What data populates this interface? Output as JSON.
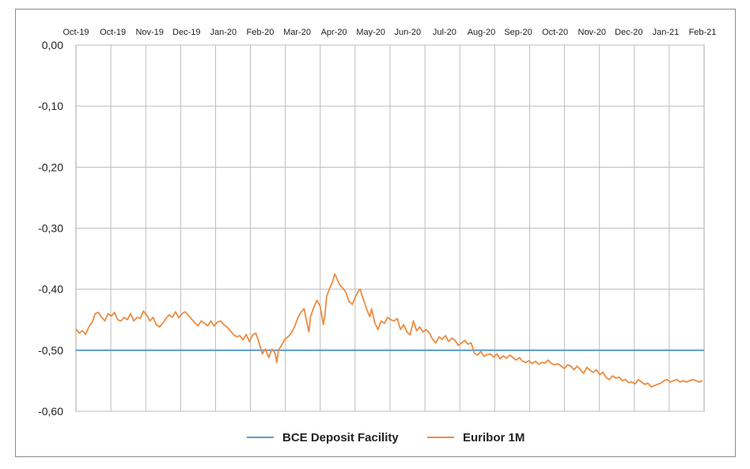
{
  "chart_data": {
    "type": "line",
    "x_tick_labels": [
      "Oct-19",
      "Oct-19",
      "Nov-19",
      "Dec-19",
      "Jan-20",
      "Feb-20",
      "Mar-20",
      "Apr-20",
      "May-20",
      "Jun-20",
      "Jul-20",
      "Aug-20",
      "Sep-20",
      "Oct-20",
      "Nov-20",
      "Dec-20",
      "Jan-21",
      "Feb-21"
    ],
    "y_tick_labels": [
      "0,00",
      "-0,10",
      "-0,20",
      "-0,30",
      "-0,40",
      "-0,50",
      "-0,60"
    ],
    "y_ticks": [
      0,
      -0.1,
      -0.2,
      -0.3,
      -0.4,
      -0.5,
      -0.6
    ],
    "ylim": [
      -0.6,
      0
    ],
    "grid": true,
    "legend_position": "bottom-center",
    "series": [
      {
        "name": "BCE Deposit Facility",
        "color": "#5b9bd5",
        "values": [
          [
            0,
            -0.5
          ],
          [
            17.3,
            -0.5
          ]
        ]
      },
      {
        "name": "Euribor 1M",
        "color": "#ed8b3f",
        "values": [
          [
            0.0,
            -0.465
          ],
          [
            0.1,
            -0.472
          ],
          [
            0.2,
            -0.468
          ],
          [
            0.3,
            -0.474
          ],
          [
            0.4,
            -0.462
          ],
          [
            0.5,
            -0.455
          ],
          [
            0.6,
            -0.44
          ],
          [
            0.7,
            -0.438
          ],
          [
            0.8,
            -0.446
          ],
          [
            0.9,
            -0.452
          ],
          [
            1.0,
            -0.44
          ],
          [
            1.1,
            -0.444
          ],
          [
            1.2,
            -0.438
          ],
          [
            1.3,
            -0.45
          ],
          [
            1.4,
            -0.452
          ],
          [
            1.5,
            -0.446
          ],
          [
            1.6,
            -0.45
          ],
          [
            1.7,
            -0.44
          ],
          [
            1.8,
            -0.452
          ],
          [
            1.9,
            -0.446
          ],
          [
            2.0,
            -0.448
          ],
          [
            2.1,
            -0.436
          ],
          [
            2.2,
            -0.442
          ],
          [
            2.3,
            -0.452
          ],
          [
            2.4,
            -0.446
          ],
          [
            2.5,
            -0.458
          ],
          [
            2.6,
            -0.462
          ],
          [
            2.7,
            -0.456
          ],
          [
            2.8,
            -0.448
          ],
          [
            2.9,
            -0.442
          ],
          [
            3.0,
            -0.446
          ],
          [
            3.1,
            -0.437
          ],
          [
            3.2,
            -0.447
          ],
          [
            3.3,
            -0.44
          ],
          [
            3.4,
            -0.437
          ],
          [
            3.5,
            -0.443
          ],
          [
            3.6,
            -0.449
          ],
          [
            3.7,
            -0.455
          ],
          [
            3.8,
            -0.46
          ],
          [
            3.9,
            -0.452
          ],
          [
            4.0,
            -0.456
          ],
          [
            4.1,
            -0.46
          ],
          [
            4.2,
            -0.452
          ],
          [
            4.3,
            -0.46
          ],
          [
            4.4,
            -0.454
          ],
          [
            4.5,
            -0.452
          ],
          [
            4.6,
            -0.458
          ],
          [
            4.7,
            -0.462
          ],
          [
            4.8,
            -0.468
          ],
          [
            4.9,
            -0.474
          ],
          [
            5.0,
            -0.478
          ],
          [
            5.1,
            -0.476
          ],
          [
            5.2,
            -0.483
          ],
          [
            5.3,
            -0.474
          ],
          [
            5.4,
            -0.486
          ],
          [
            5.5,
            -0.475
          ],
          [
            5.6,
            -0.472
          ],
          [
            5.7,
            -0.488
          ],
          [
            5.8,
            -0.506
          ],
          [
            5.9,
            -0.498
          ],
          [
            6.0,
            -0.512
          ],
          [
            6.1,
            -0.498
          ],
          [
            6.2,
            -0.505
          ],
          [
            6.25,
            -0.52
          ],
          [
            6.3,
            -0.5
          ],
          [
            6.4,
            -0.492
          ],
          [
            6.5,
            -0.482
          ],
          [
            6.6,
            -0.478
          ],
          [
            6.7,
            -0.472
          ],
          [
            6.8,
            -0.462
          ],
          [
            6.9,
            -0.448
          ],
          [
            7.0,
            -0.438
          ],
          [
            7.1,
            -0.432
          ],
          [
            7.2,
            -0.458
          ],
          [
            7.25,
            -0.47
          ],
          [
            7.3,
            -0.445
          ],
          [
            7.4,
            -0.43
          ],
          [
            7.5,
            -0.418
          ],
          [
            7.6,
            -0.428
          ],
          [
            7.7,
            -0.458
          ],
          [
            7.75,
            -0.442
          ],
          [
            7.8,
            -0.412
          ],
          [
            7.9,
            -0.398
          ],
          [
            8.0,
            -0.386
          ],
          [
            8.05,
            -0.375
          ],
          [
            8.1,
            -0.38
          ],
          [
            8.2,
            -0.392
          ],
          [
            8.3,
            -0.398
          ],
          [
            8.4,
            -0.405
          ],
          [
            8.5,
            -0.42
          ],
          [
            8.6,
            -0.425
          ],
          [
            8.7,
            -0.412
          ],
          [
            8.8,
            -0.402
          ],
          [
            8.85,
            -0.4
          ],
          [
            8.9,
            -0.41
          ],
          [
            9.0,
            -0.425
          ],
          [
            9.1,
            -0.44
          ],
          [
            9.15,
            -0.445
          ],
          [
            9.2,
            -0.432
          ],
          [
            9.3,
            -0.455
          ],
          [
            9.4,
            -0.466
          ],
          [
            9.5,
            -0.452
          ],
          [
            9.6,
            -0.456
          ],
          [
            9.7,
            -0.446
          ],
          [
            9.8,
            -0.45
          ],
          [
            9.9,
            -0.452
          ],
          [
            10.0,
            -0.448
          ],
          [
            10.1,
            -0.466
          ],
          [
            10.2,
            -0.458
          ],
          [
            10.3,
            -0.47
          ],
          [
            10.4,
            -0.475
          ],
          [
            10.5,
            -0.452
          ],
          [
            10.6,
            -0.468
          ],
          [
            10.7,
            -0.462
          ],
          [
            10.8,
            -0.47
          ],
          [
            10.9,
            -0.466
          ],
          [
            11.0,
            -0.472
          ],
          [
            11.1,
            -0.482
          ],
          [
            11.2,
            -0.488
          ],
          [
            11.3,
            -0.478
          ],
          [
            11.4,
            -0.482
          ],
          [
            11.5,
            -0.476
          ],
          [
            11.6,
            -0.486
          ],
          [
            11.7,
            -0.48
          ],
          [
            11.8,
            -0.484
          ],
          [
            11.9,
            -0.492
          ],
          [
            12.0,
            -0.488
          ],
          [
            12.1,
            -0.484
          ],
          [
            12.2,
            -0.49
          ],
          [
            12.3,
            -0.488
          ],
          [
            12.4,
            -0.505
          ],
          [
            12.5,
            -0.508
          ],
          [
            12.6,
            -0.502
          ],
          [
            12.7,
            -0.51
          ],
          [
            12.8,
            -0.507
          ],
          [
            12.9,
            -0.506
          ],
          [
            13.0,
            -0.511
          ],
          [
            13.1,
            -0.506
          ],
          [
            13.2,
            -0.514
          ],
          [
            13.3,
            -0.509
          ],
          [
            13.4,
            -0.513
          ],
          [
            13.5,
            -0.508
          ],
          [
            13.6,
            -0.512
          ],
          [
            13.7,
            -0.516
          ],
          [
            13.8,
            -0.512
          ],
          [
            13.9,
            -0.518
          ],
          [
            14.0,
            -0.52
          ],
          [
            14.1,
            -0.517
          ],
          [
            14.2,
            -0.522
          ],
          [
            14.3,
            -0.518
          ],
          [
            14.4,
            -0.523
          ],
          [
            14.5,
            -0.52
          ],
          [
            14.6,
            -0.521
          ],
          [
            14.7,
            -0.516
          ],
          [
            14.8,
            -0.522
          ],
          [
            14.9,
            -0.524
          ],
          [
            15.0,
            -0.522
          ],
          [
            15.1,
            -0.526
          ],
          [
            15.2,
            -0.53
          ],
          [
            15.3,
            -0.524
          ],
          [
            15.4,
            -0.526
          ],
          [
            15.5,
            -0.532
          ],
          [
            15.6,
            -0.526
          ],
          [
            15.7,
            -0.532
          ],
          [
            15.8,
            -0.538
          ],
          [
            15.9,
            -0.528
          ],
          [
            16.0,
            -0.533
          ],
          [
            16.1,
            -0.536
          ],
          [
            16.2,
            -0.532
          ],
          [
            16.3,
            -0.54
          ],
          [
            16.4,
            -0.536
          ],
          [
            16.5,
            -0.545
          ],
          [
            16.6,
            -0.548
          ],
          [
            16.7,
            -0.542
          ],
          [
            16.8,
            -0.546
          ],
          [
            16.9,
            -0.544
          ],
          [
            17.0,
            -0.55
          ],
          [
            17.1,
            -0.548
          ],
          [
            17.2,
            -0.553
          ],
          [
            17.3,
            -0.552
          ],
          [
            17.4,
            -0.555
          ],
          [
            17.5,
            -0.548
          ],
          [
            17.6,
            -0.552
          ],
          [
            17.7,
            -0.556
          ],
          [
            17.8,
            -0.554
          ],
          [
            17.9,
            -0.56
          ],
          [
            18.0,
            -0.558
          ],
          [
            18.1,
            -0.556
          ],
          [
            18.2,
            -0.554
          ],
          [
            18.3,
            -0.55
          ],
          [
            18.4,
            -0.548
          ],
          [
            18.5,
            -0.552
          ],
          [
            18.6,
            -0.55
          ],
          [
            18.7,
            -0.548
          ],
          [
            18.8,
            -0.552
          ],
          [
            18.9,
            -0.55
          ],
          [
            19.0,
            -0.552
          ],
          [
            19.1,
            -0.55
          ],
          [
            19.2,
            -0.548
          ],
          [
            19.3,
            -0.55
          ],
          [
            19.4,
            -0.552
          ],
          [
            19.5,
            -0.55
          ]
        ]
      }
    ]
  }
}
